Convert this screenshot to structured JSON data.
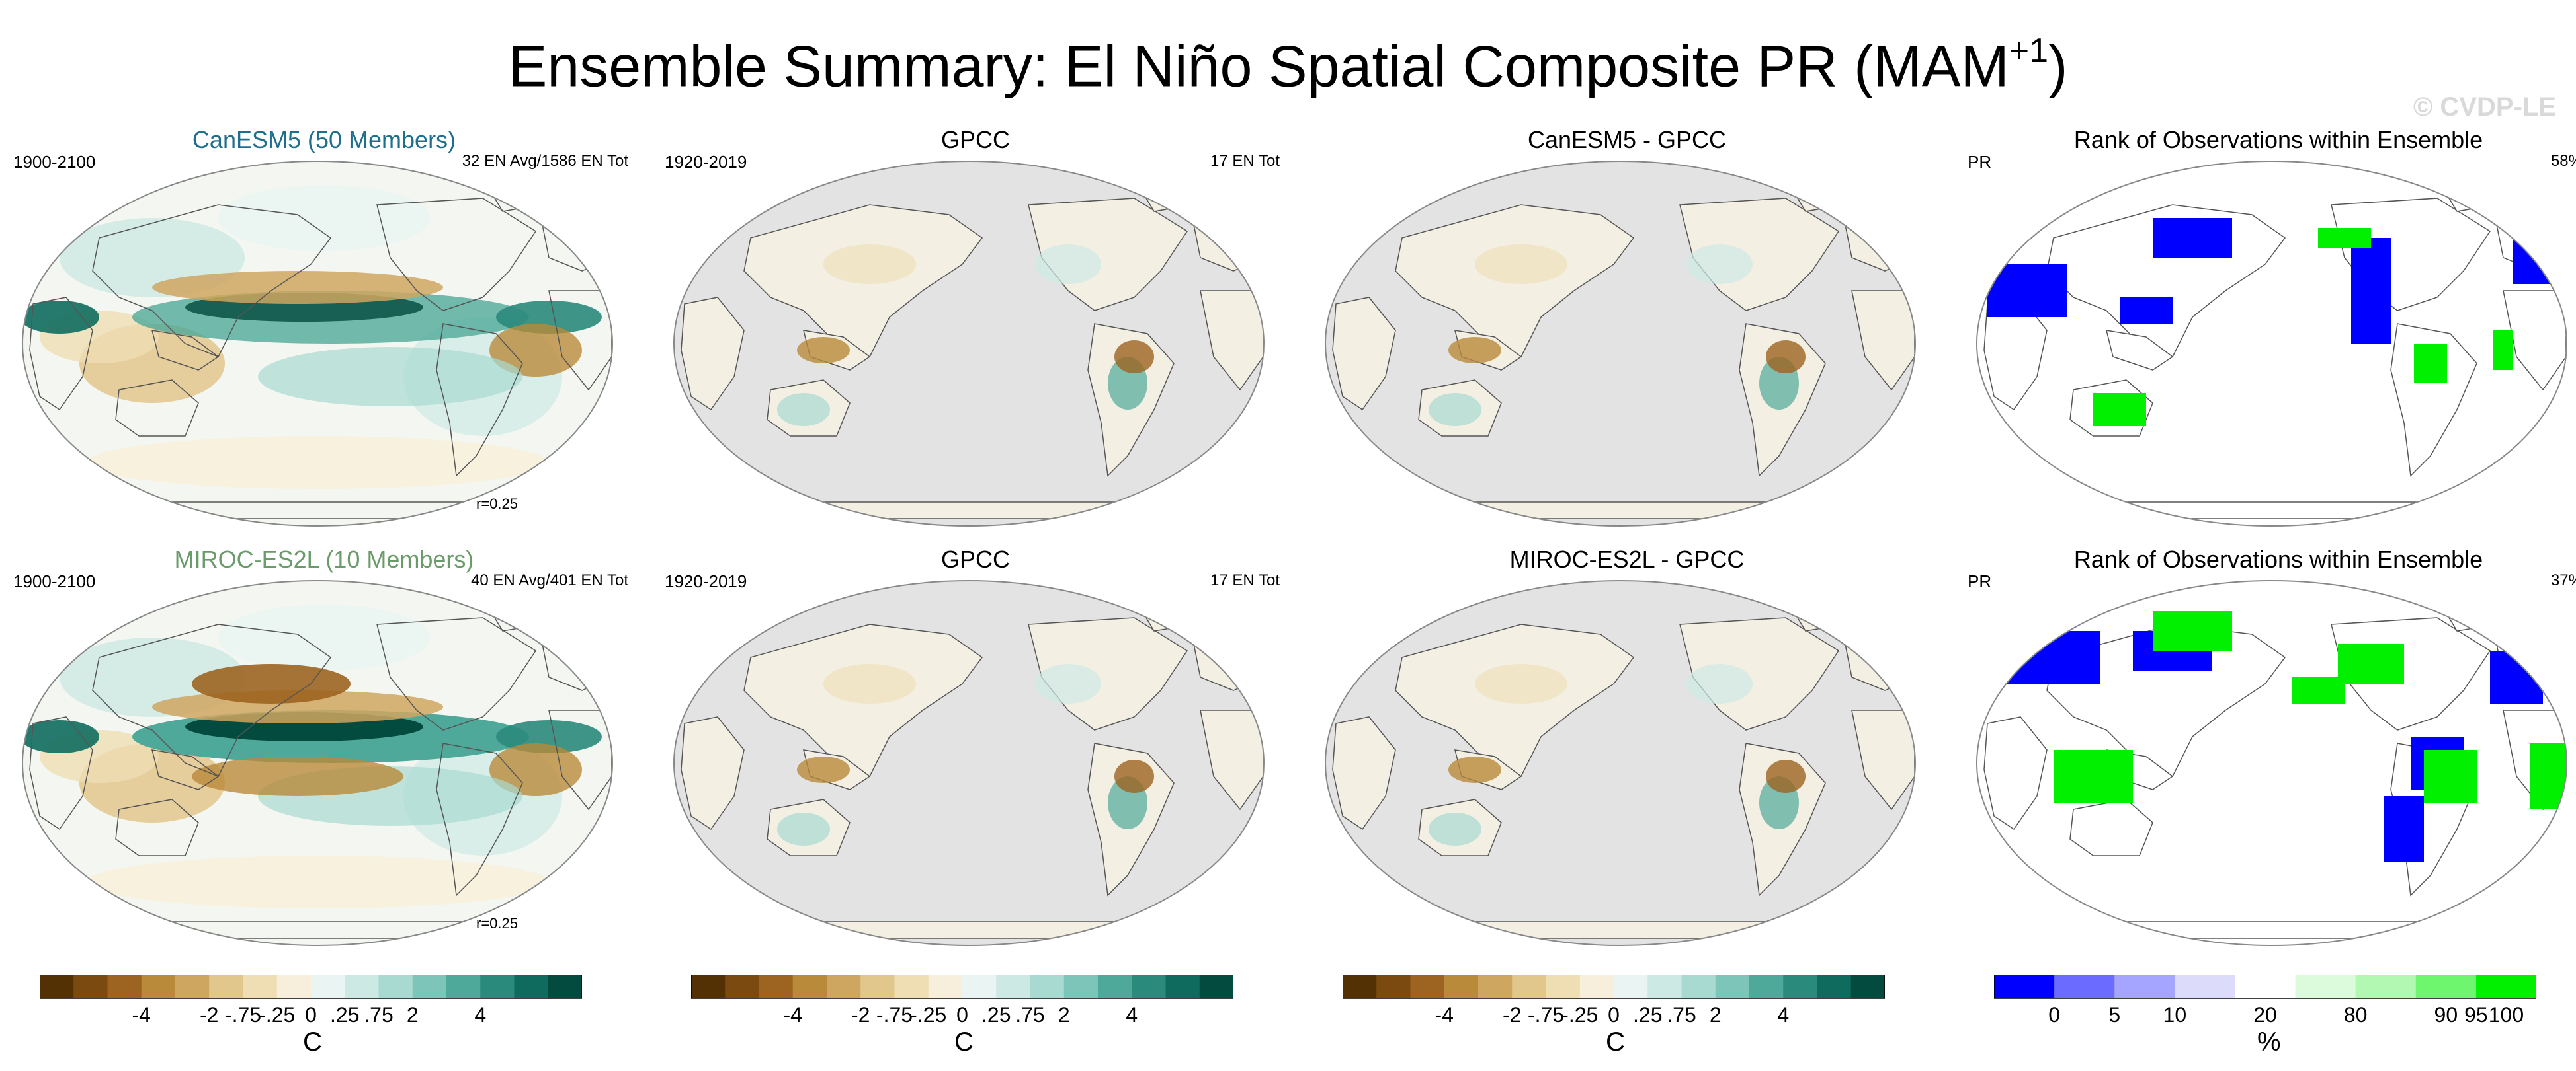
{
  "title_main": "Ensemble Summary: El Niño Spatial Composite PR (MAM",
  "title_sup": "+1",
  "title_end": ")",
  "watermark": "© CVDP-LE",
  "panels": [
    {
      "title": "CanESM5 (50 Members)",
      "title_color": "#1f6e8c",
      "left": "1900-2100",
      "right": "32 EN Avg/1586 EN Tot",
      "corr": "r=0.25",
      "kind": "model"
    },
    {
      "title": "GPCC",
      "title_color": "#000000",
      "left": "1920-2019",
      "right": "17 EN Tot",
      "corr": "",
      "kind": "obs"
    },
    {
      "title": "CanESM5 - GPCC",
      "title_color": "#000000",
      "left": "",
      "right": "",
      "corr": "",
      "kind": "diff"
    },
    {
      "title": "Rank of Observations within Ensemble",
      "title_color": "#000000",
      "left": "PR",
      "right": "58%",
      "corr": "",
      "kind": "rank"
    },
    {
      "title": "MIROC-ES2L (10 Members)",
      "title_color": "#6b9b6b",
      "left": "1900-2100",
      "right": "40 EN Avg/401 EN Tot",
      "corr": "r=0.25",
      "kind": "model"
    },
    {
      "title": "GPCC",
      "title_color": "#000000",
      "left": "1920-2019",
      "right": "17 EN Tot",
      "corr": "",
      "kind": "obs"
    },
    {
      "title": "MIROC-ES2L - GPCC",
      "title_color": "#000000",
      "left": "",
      "right": "",
      "corr": "",
      "kind": "diff"
    },
    {
      "title": "Rank of Observations within Ensemble",
      "title_color": "#000000",
      "left": "PR",
      "right": "37%",
      "corr": "",
      "kind": "rank"
    }
  ],
  "colorbars": [
    {
      "labels": [
        "-4",
        "-2",
        "-.75",
        "-.25",
        "0",
        ".25",
        ".75",
        "2",
        "4"
      ],
      "unit": "C"
    },
    {
      "labels": [
        "-4",
        "-2",
        "-.75",
        "-.25",
        "0",
        ".25",
        ".75",
        "2",
        "4"
      ],
      "unit": "C"
    },
    {
      "labels": [
        "-4",
        "-2",
        "-.75",
        "-.25",
        "0",
        ".25",
        ".75",
        "2",
        "4"
      ],
      "unit": "C"
    },
    {
      "labels": [
        "0",
        "5",
        "10",
        "20",
        "80",
        "90",
        "95",
        "100"
      ],
      "unit": "%"
    }
  ],
  "colors": {
    "brbg": [
      "#543005",
      "#7a4a10",
      "#9c6420",
      "#b98a3a",
      "#cfa660",
      "#e2c78d",
      "#efddb4",
      "#f7efdc",
      "#eaf4f2",
      "#cde9e4",
      "#a8dad1",
      "#7cc5b8",
      "#4fa99a",
      "#2a8a7b",
      "#0f6b5e",
      "#034a3f"
    ],
    "rank": [
      "#0000ff",
      "#6b6bff",
      "#a5a5ff",
      "#dcdcfa",
      "#ffffff",
      "#dcfadc",
      "#b2f7b2",
      "#6ef76e",
      "#00f000"
    ],
    "land_gray": "#e3e3e3",
    "coast": "#555555"
  },
  "chart_data": [
    {
      "type": "heatmap",
      "title": "CanESM5 (50 Members)",
      "period": "1900-2100",
      "count": "32 EN Avg/1586 EN Tot",
      "pattern_correlation": 0.25,
      "colorbar_levels": [
        -4,
        -2,
        -0.75,
        -0.25,
        0,
        0.25,
        0.75,
        2,
        4
      ],
      "unit": "C"
    },
    {
      "type": "heatmap",
      "title": "GPCC",
      "period": "1920-2019",
      "count": "17 EN Tot",
      "unit": "C"
    },
    {
      "type": "heatmap",
      "title": "CanESM5 - GPCC",
      "unit": "C"
    },
    {
      "type": "heatmap",
      "title": "Rank of Observations within Ensemble",
      "variable": "PR",
      "percent": 58,
      "colorbar_levels": [
        0,
        5,
        10,
        20,
        80,
        90,
        95,
        100
      ],
      "unit": "%"
    },
    {
      "type": "heatmap",
      "title": "MIROC-ES2L (10 Members)",
      "period": "1900-2100",
      "count": "40 EN Avg/401 EN Tot",
      "pattern_correlation": 0.25,
      "unit": "C"
    },
    {
      "type": "heatmap",
      "title": "GPCC",
      "period": "1920-2019",
      "count": "17 EN Tot",
      "unit": "C"
    },
    {
      "type": "heatmap",
      "title": "MIROC-ES2L - GPCC",
      "unit": "C"
    },
    {
      "type": "heatmap",
      "title": "Rank of Observations within Ensemble",
      "variable": "PR",
      "percent": 37,
      "unit": "%"
    }
  ]
}
